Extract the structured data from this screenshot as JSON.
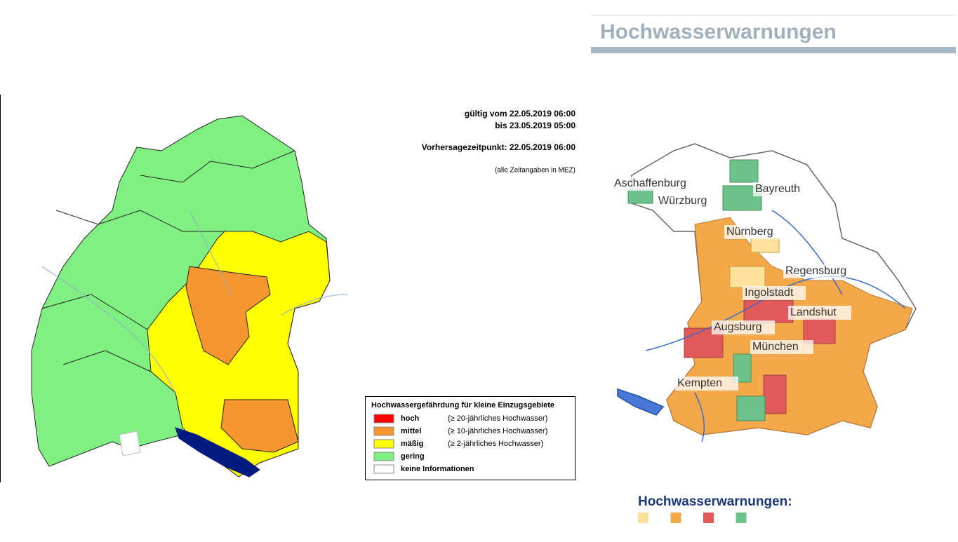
{
  "header": {
    "title": "Hochwasserwarnungen"
  },
  "validity": {
    "from": "gültig vom 22.05.2019 06:00",
    "to": "bis 23.05.2019 05:00",
    "forecast": "Vorhersagezeitpunkt: 22.05.2019 06:00",
    "note": "(alle Zeitangaben in MEZ)"
  },
  "legend": {
    "title": "Hochwassergefährdung für kleine Einzugsgebiete",
    "items": [
      {
        "label": "hoch",
        "description": "(≥ 20-jährliches Hochwasser)",
        "color": "#ff0000"
      },
      {
        "label": "mittel",
        "description": "(≥ 10-jährliches Hochwasser)",
        "color": "#f7962f"
      },
      {
        "label": "mäßig",
        "description": "(≥  2-jährliches Hochwasser)",
        "color": "#ffff00"
      },
      {
        "label": "gering",
        "color": "#80f080"
      },
      {
        "label": "keine Informationen",
        "color": "#ffffff"
      }
    ]
  },
  "bavaria_map": {
    "cities": [
      "Aschaffenburg",
      "Würzburg",
      "Bayreuth",
      "Nürnberg",
      "Regensburg",
      "Ingolstadt",
      "Landshut",
      "Augsburg",
      "München",
      "Kempten"
    ]
  },
  "bavaria_legend": {
    "title": "Hochwasserwarnungen:",
    "colors": [
      "#fde09a",
      "#f5a84a",
      "#e05a5a",
      "#6cc48a"
    ]
  }
}
